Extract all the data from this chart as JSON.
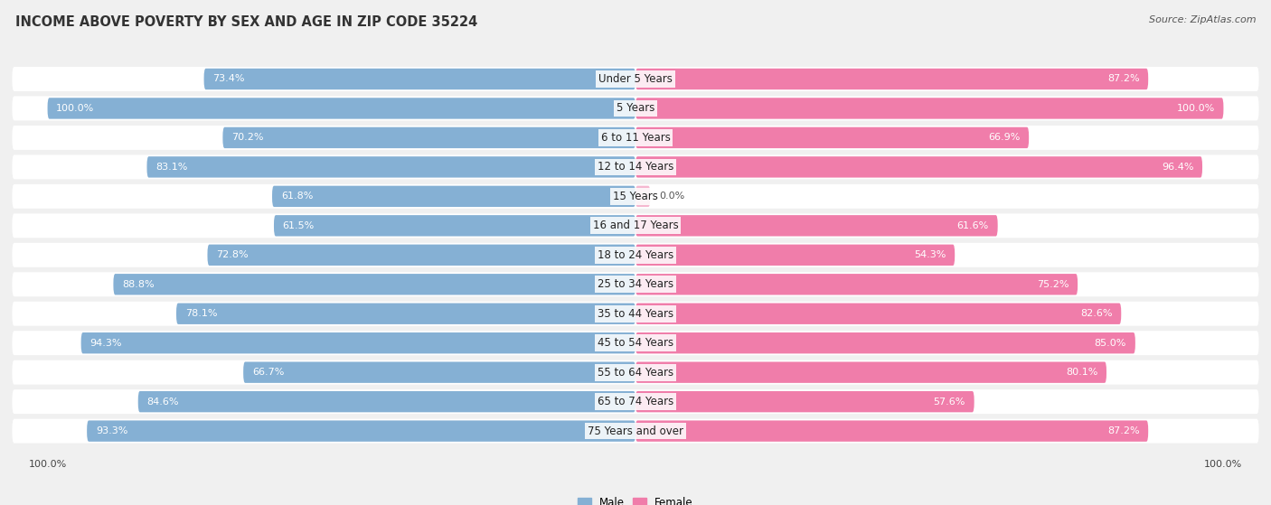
{
  "title": "INCOME ABOVE POVERTY BY SEX AND AGE IN ZIP CODE 35224",
  "source": "Source: ZipAtlas.com",
  "categories": [
    "Under 5 Years",
    "5 Years",
    "6 to 11 Years",
    "12 to 14 Years",
    "15 Years",
    "16 and 17 Years",
    "18 to 24 Years",
    "25 to 34 Years",
    "35 to 44 Years",
    "45 to 54 Years",
    "55 to 64 Years",
    "65 to 74 Years",
    "75 Years and over"
  ],
  "male_values": [
    73.4,
    100.0,
    70.2,
    83.1,
    61.8,
    61.5,
    72.8,
    88.8,
    78.1,
    94.3,
    66.7,
    84.6,
    93.3
  ],
  "female_values": [
    87.2,
    100.0,
    66.9,
    96.4,
    0.0,
    61.6,
    54.3,
    75.2,
    82.6,
    85.0,
    80.1,
    57.6,
    87.2
  ],
  "male_color": "#85b0d4",
  "female_color": "#f07daa",
  "female_light_color": "#f5b8d0",
  "bg_color": "#f0f0f0",
  "bar_bg_color": "#ffffff",
  "legend_male": "Male",
  "legend_female": "Female",
  "title_fontsize": 10.5,
  "label_fontsize": 8.5,
  "value_fontsize": 8,
  "source_fontsize": 8
}
